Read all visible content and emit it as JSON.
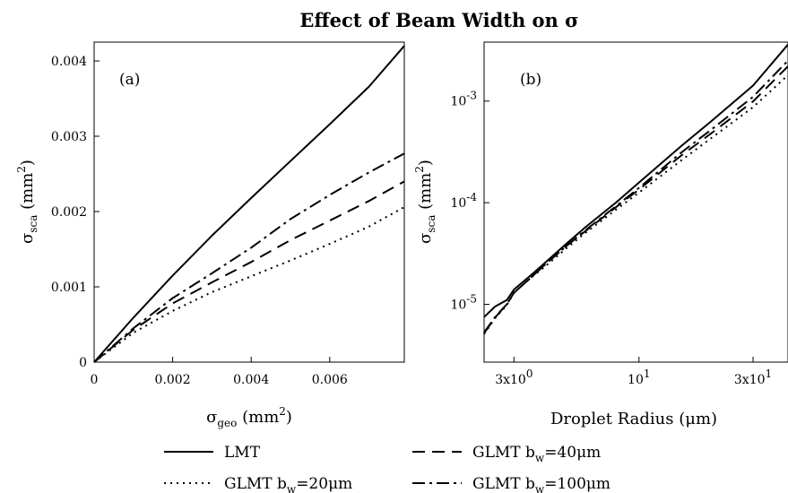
{
  "chart_data": {
    "title": "Effect of Beam Width on σ",
    "legend": {
      "placement": "bottom",
      "entries": [
        {
          "label": "LMT",
          "style": "solid"
        },
        {
          "label_main": "GLMT b",
          "label_sub": "w",
          "label_tail": "=40μm",
          "style": "dashed"
        },
        {
          "label_main": "GLMT b",
          "label_sub": "w",
          "label_tail": "=20μm",
          "style": "dotted"
        },
        {
          "label_main": "GLMT b",
          "label_sub": "w",
          "label_tail": "=100μm",
          "style": "dashdot"
        }
      ]
    },
    "panels": [
      {
        "id": "a",
        "tag": "(a)",
        "type": "line",
        "xscale": "linear",
        "yscale": "linear",
        "xlim": [
          0,
          0.0079
        ],
        "ylim": [
          0,
          0.00425
        ],
        "xlabel": {
          "main": "σ",
          "sub": "geo",
          "tail": " (mm",
          "sup": "2",
          "close": ")"
        },
        "ylabel": {
          "main": "σ",
          "sub": "sca",
          "tail": " (mm",
          "sup": "2",
          "close": ")"
        },
        "xticks": [
          {
            "value": 0,
            "label": "0"
          },
          {
            "value": 0.002,
            "label": "0.002"
          },
          {
            "value": 0.004,
            "label": "0.004"
          },
          {
            "value": 0.006,
            "label": "0.006"
          }
        ],
        "yticks": [
          {
            "value": 0,
            "label": "0"
          },
          {
            "value": 0.001,
            "label": "0.001"
          },
          {
            "value": 0.002,
            "label": "0.002"
          },
          {
            "value": 0.003,
            "label": "0.003"
          },
          {
            "value": 0.004,
            "label": "0.004"
          }
        ],
        "series": [
          {
            "style": "solid",
            "x": [
              0,
              0.001,
              0.002,
              0.003,
              0.004,
              0.005,
              0.006,
              0.007,
              0.0079
            ],
            "y": [
              0,
              0.00059,
              0.00115,
              0.00168,
              0.00218,
              0.00267,
              0.00316,
              0.00366,
              0.0042
            ]
          },
          {
            "style": "dashdot",
            "x": [
              0,
              0.001,
              0.002,
              0.003,
              0.004,
              0.005,
              0.006,
              0.007,
              0.0079
            ],
            "y": [
              0,
              0.00045,
              0.00085,
              0.00118,
              0.00152,
              0.0019,
              0.00222,
              0.00252,
              0.00277
            ]
          },
          {
            "style": "dashed",
            "x": [
              0,
              0.001,
              0.002,
              0.003,
              0.004,
              0.005,
              0.006,
              0.007,
              0.0079
            ],
            "y": [
              0,
              0.00043,
              0.00078,
              0.00106,
              0.00133,
              0.00162,
              0.00188,
              0.00214,
              0.0024
            ]
          },
          {
            "style": "dotted",
            "x": [
              0,
              0.001,
              0.002,
              0.003,
              0.004,
              0.005,
              0.006,
              0.007,
              0.0079
            ],
            "y": [
              0,
              0.00039,
              0.00068,
              0.00093,
              0.00114,
              0.00135,
              0.00157,
              0.0018,
              0.00206
            ]
          }
        ]
      },
      {
        "id": "b",
        "tag": "(b)",
        "type": "line",
        "xscale": "log",
        "yscale": "log",
        "xlim": [
          2.25,
          42
        ],
        "ylim": [
          2.7e-06,
          0.0038
        ],
        "xlabel": {
          "main": "Droplet Radius (μm)"
        },
        "ylabel": {
          "main": "σ",
          "sub": "sca",
          "tail": " (mm",
          "sup": "2",
          "close": ")"
        },
        "xticks": [
          {
            "value": 3,
            "mant": "3x10",
            "exp": "0"
          },
          {
            "value": 10,
            "mant": "10",
            "exp": "1"
          },
          {
            "value": 30,
            "mant": "3x10",
            "exp": "1"
          }
        ],
        "yticks": [
          {
            "value": 1e-05,
            "mant": "10",
            "exp": "-5"
          },
          {
            "value": 0.0001,
            "mant": "10",
            "exp": "-4"
          },
          {
            "value": 0.001,
            "mant": "10",
            "exp": "-3"
          }
        ],
        "series": [
          {
            "style": "solid",
            "x": [
              2.25,
              2.5,
              2.8,
              3.0,
              3.5,
              4.0,
              5.0,
              6.0,
              8.0,
              10,
              15,
              20,
              30,
              42
            ],
            "y": [
              7.5e-06,
              9.5e-06,
              1.1e-05,
              1.4e-05,
              1.9e-05,
              2.5e-05,
              4e-05,
              5.8e-05,
              0.0001,
              0.000158,
              0.00036,
              0.00063,
              0.00142,
              0.0036
            ]
          },
          {
            "style": "dashdot",
            "x": [
              2.25,
              2.5,
              2.8,
              3.0,
              3.5,
              4.0,
              5.0,
              6.0,
              8.0,
              10,
              15,
              20,
              30,
              42
            ],
            "y": [
              5.3e-06,
              7.5e-06,
              1e-05,
              1.3e-05,
              1.8e-05,
              2.4e-05,
              3.8e-05,
              5.4e-05,
              9.2e-05,
              0.00014,
              0.00031,
              0.00052,
              0.0011,
              0.0025
            ]
          },
          {
            "style": "dashed",
            "x": [
              2.25,
              2.5,
              2.8,
              3.0,
              3.5,
              4.0,
              5.0,
              6.0,
              8.0,
              10,
              15,
              20,
              30,
              42
            ],
            "y": [
              5.2e-06,
              7.4e-06,
              1e-05,
              1.3e-05,
              1.8e-05,
              2.4e-05,
              3.8e-05,
              5.3e-05,
              9e-05,
              0.000135,
              0.00029,
              0.00048,
              0.00099,
              0.0022
            ]
          },
          {
            "style": "dotted",
            "x": [
              2.25,
              2.5,
              2.8,
              3.0,
              3.5,
              4.0,
              5.0,
              6.0,
              8.0,
              10,
              15,
              20,
              30,
              42
            ],
            "y": [
              5.1e-06,
              7.3e-06,
              9.8e-06,
              1.3e-05,
              1.8e-05,
              2.3e-05,
              3.6e-05,
              5.1e-05,
              8.5e-05,
              0.000126,
              0.00026,
              0.00043,
              0.00087,
              0.0018
            ]
          }
        ]
      }
    ]
  }
}
